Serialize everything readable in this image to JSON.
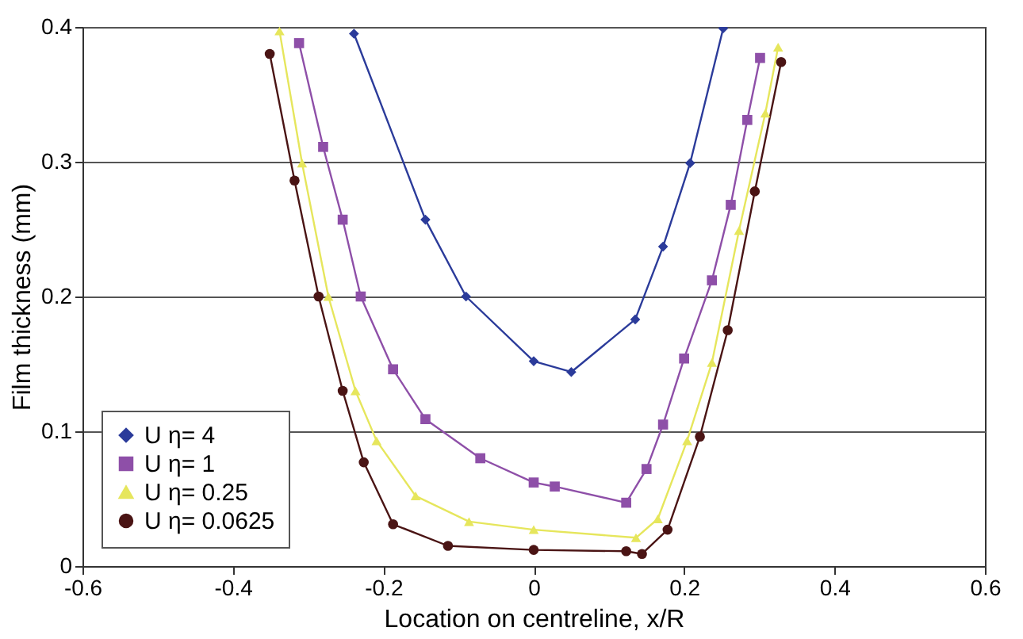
{
  "chart_data": {
    "type": "line",
    "xlabel": "Location on centreline, x/R",
    "ylabel": "Film thickness (mm)",
    "xlim": [
      -0.6,
      0.6
    ],
    "xticks": [
      -0.6,
      -0.4,
      -0.2,
      0,
      0.2,
      0.4,
      0.6
    ],
    "ylim": [
      0,
      0.4
    ],
    "yticks": [
      0,
      0.1,
      0.2,
      0.3,
      0.4
    ],
    "grid": "y",
    "legend": "bottom left",
    "series": [
      {
        "name": "U η= 4",
        "color": "#2b3b9a",
        "marker": "diamond",
        "x": [
          -0.239,
          -0.144,
          -0.09,
          0,
          0.05,
          0.135,
          0.172,
          0.208,
          0.252
        ],
        "values": [
          0.395,
          0.257,
          0.2,
          0.152,
          0.144,
          0.183,
          0.237,
          0.299,
          0.399
        ]
      },
      {
        "name": "U η= 1",
        "color": "#8e4fa8",
        "marker": "square",
        "x": [
          -0.312,
          -0.28,
          -0.254,
          -0.23,
          -0.187,
          -0.144,
          -0.071,
          0,
          0.028,
          0.123,
          0.15,
          0.172,
          0.2,
          0.237,
          0.262,
          0.284,
          0.301
        ],
        "values": [
          0.388,
          0.311,
          0.257,
          0.2,
          0.146,
          0.109,
          0.08,
          0.062,
          0.059,
          0.047,
          0.072,
          0.105,
          0.154,
          0.212,
          0.268,
          0.331,
          0.377
        ]
      },
      {
        "name": "U η= 0.25",
        "color": "#e6e65c",
        "marker": "triangle",
        "x": [
          -0.338,
          -0.308,
          -0.273,
          -0.237,
          -0.209,
          -0.157,
          -0.086,
          0,
          0.136,
          0.165,
          0.204,
          0.237,
          0.273,
          0.308,
          0.325
        ],
        "values": [
          0.397,
          0.299,
          0.2,
          0.13,
          0.093,
          0.052,
          0.033,
          0.027,
          0.021,
          0.035,
          0.093,
          0.151,
          0.249,
          0.336,
          0.385
        ]
      },
      {
        "name": "U η= 0.0625",
        "color": "#4a1414",
        "marker": "circle",
        "x": [
          -0.351,
          -0.318,
          -0.286,
          -0.254,
          -0.226,
          -0.187,
          -0.114,
          0,
          0.123,
          0.144,
          0.178,
          0.221,
          0.258,
          0.294,
          0.329
        ],
        "values": [
          0.38,
          0.286,
          0.2,
          0.13,
          0.077,
          0.031,
          0.015,
          0.012,
          0.011,
          0.009,
          0.027,
          0.096,
          0.175,
          0.278,
          0.374
        ]
      }
    ]
  }
}
